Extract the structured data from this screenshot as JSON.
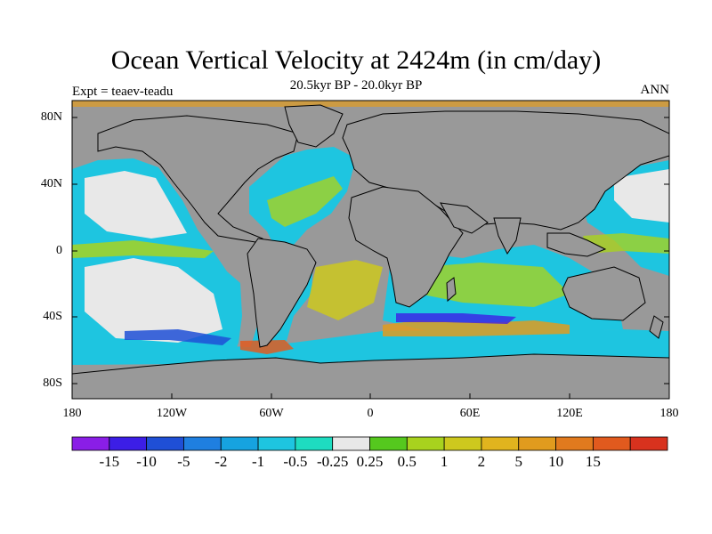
{
  "title": "Ocean Vertical Velocity at 2424m (in cm/day)",
  "subtitle": "20.5kyr BP - 20.0kyr BP",
  "left_label": "Expt = teaev-teadu",
  "right_label": "ANN",
  "lat_labels": [
    "80N",
    "40N",
    "0",
    "40S",
    "80S"
  ],
  "lon_labels": [
    "180",
    "120W",
    "60W",
    "0",
    "60E",
    "120E",
    "180"
  ],
  "colorbar": {
    "colors": [
      "#8a1ee6",
      "#3c1ee6",
      "#1f4fd6",
      "#1f7fe0",
      "#16a3e0",
      "#1ec5e0",
      "#1edcc0",
      "#e8e8e8",
      "#55c81e",
      "#a8d21e",
      "#cdc81e",
      "#e1b41e",
      "#e19b1e",
      "#e17a1e",
      "#e15a1e",
      "#d8321e"
    ],
    "labels": [
      "-15",
      "-10",
      "-5",
      "-2",
      "-1",
      "-0.5",
      "-0.25",
      "0.25",
      "0.5",
      "1",
      "2",
      "5",
      "10",
      "15"
    ]
  },
  "colors": {
    "land": "#999999",
    "border": "#000000",
    "coast": "#000000"
  }
}
